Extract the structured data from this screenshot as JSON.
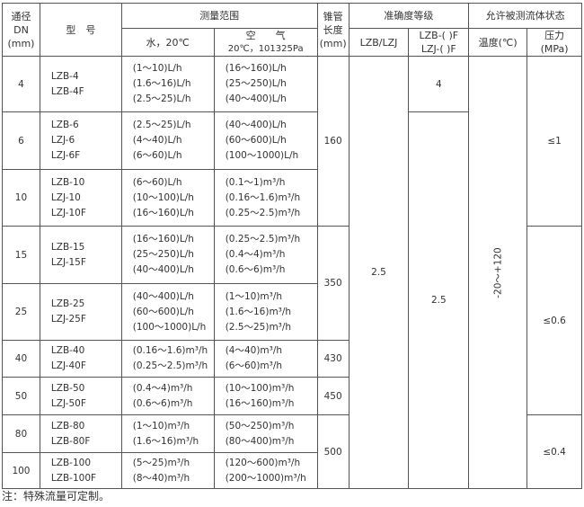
{
  "header": {
    "dn": [
      "通径",
      "DN",
      "(mm)"
    ],
    "model": "型　号",
    "range": "测量范围",
    "water": "水，20℃",
    "air": [
      "空　　气",
      "20℃，101325Pa"
    ],
    "length": [
      "锥管",
      "长度",
      "(mm)"
    ],
    "accuracy": "准确度等级",
    "acc_a": "LZB/LZJ",
    "acc_b": [
      "LZB-( )F",
      "LZJ-( )F"
    ],
    "fluid": "允许被测流体状态",
    "temp": "温度(℃)",
    "pressure": [
      "压力",
      "(MPa)"
    ]
  },
  "rows": [
    {
      "dn": "4",
      "models": [
        "LZB-4",
        "LZB-4F"
      ],
      "water": [
        "(1～10)L/h",
        "(1.6～16)L/h",
        "(2.5～25)L/h"
      ],
      "air": [
        "(16～160)L/h",
        "(25～250)L/h",
        "(40～400)L/h"
      ]
    },
    {
      "dn": "6",
      "models": [
        "LZB-6",
        "LZJ-6",
        "LZJ-6F"
      ],
      "water": [
        "(2.5～25)L/h",
        "(4～40)L/h",
        "(6～60)L/h"
      ],
      "air": [
        "(40～400)L/h",
        "(60～600)L/h",
        "(100～1000)L/h"
      ]
    },
    {
      "dn": "10",
      "models": [
        "LZB-10",
        "LZJ-10",
        "LZJ-10F"
      ],
      "water": [
        "(6～60)L/h",
        "(10～100)L/h",
        "(16～160)L/h"
      ],
      "air": [
        "(0.1～1)m³/h",
        "(0.16～1.6)m³/h",
        "(0.25～2.5)m³/h"
      ]
    },
    {
      "dn": "15",
      "models": [
        "LZB-15",
        "LZJ-15F"
      ],
      "water": [
        "(16～160)L/h",
        "(25～250)L/h",
        "(40～400)L/h"
      ],
      "air": [
        "(0.25～2.5)m³/h",
        "(0.4～4)m³/h",
        "(0.6～6)m³/h"
      ]
    },
    {
      "dn": "25",
      "models": [
        "LZB-25",
        "LZJ-25F"
      ],
      "water": [
        "(40～400)L/h",
        "(60～600)L/h",
        "(100～1000)L/h"
      ],
      "air": [
        "(1～10)m³/h",
        "(1.6～16)m³/h",
        "(2.5～25)m³/h"
      ]
    },
    {
      "dn": "40",
      "models": [
        "LZB-40",
        "LZJ-40F"
      ],
      "water": [
        "(0.16～1.6)m³/h",
        "(0.25～2.5)m³/h"
      ],
      "air": [
        "(4～40)m³/h",
        "(6～60)m³/h"
      ]
    },
    {
      "dn": "50",
      "models": [
        "LZB-50",
        "LZJ-50F"
      ],
      "water": [
        "(0.4～4)m³/h",
        "(0.6～6)m³/h"
      ],
      "air": [
        "(10～100)m³/h",
        "(16～160)m³/h"
      ]
    },
    {
      "dn": "80",
      "models": [
        "LZB-80",
        "LZB-80F"
      ],
      "water": [
        "(1～10)m³/h",
        "(1.6～16)m³/h"
      ],
      "air": [
        "(50～250)m³/h",
        "(80～400)m³/h"
      ]
    },
    {
      "dn": "100",
      "models": [
        "LZB-100",
        "LZB-100F"
      ],
      "water": [
        "(5～25)m³/h",
        "(8～40)m³/h"
      ],
      "air": [
        "(120～600)m³/h",
        "(200～1000)m³/h"
      ]
    }
  ],
  "lengths": [
    "160",
    "350",
    "430",
    "450",
    "500"
  ],
  "accuracy_a": "2.5",
  "accuracy_b": [
    "4",
    "2.5"
  ],
  "temperature": "-20～+120",
  "pressures": [
    "≤1",
    "≤0.6",
    "≤0.4"
  ],
  "note": "注：特殊流量可定制。"
}
